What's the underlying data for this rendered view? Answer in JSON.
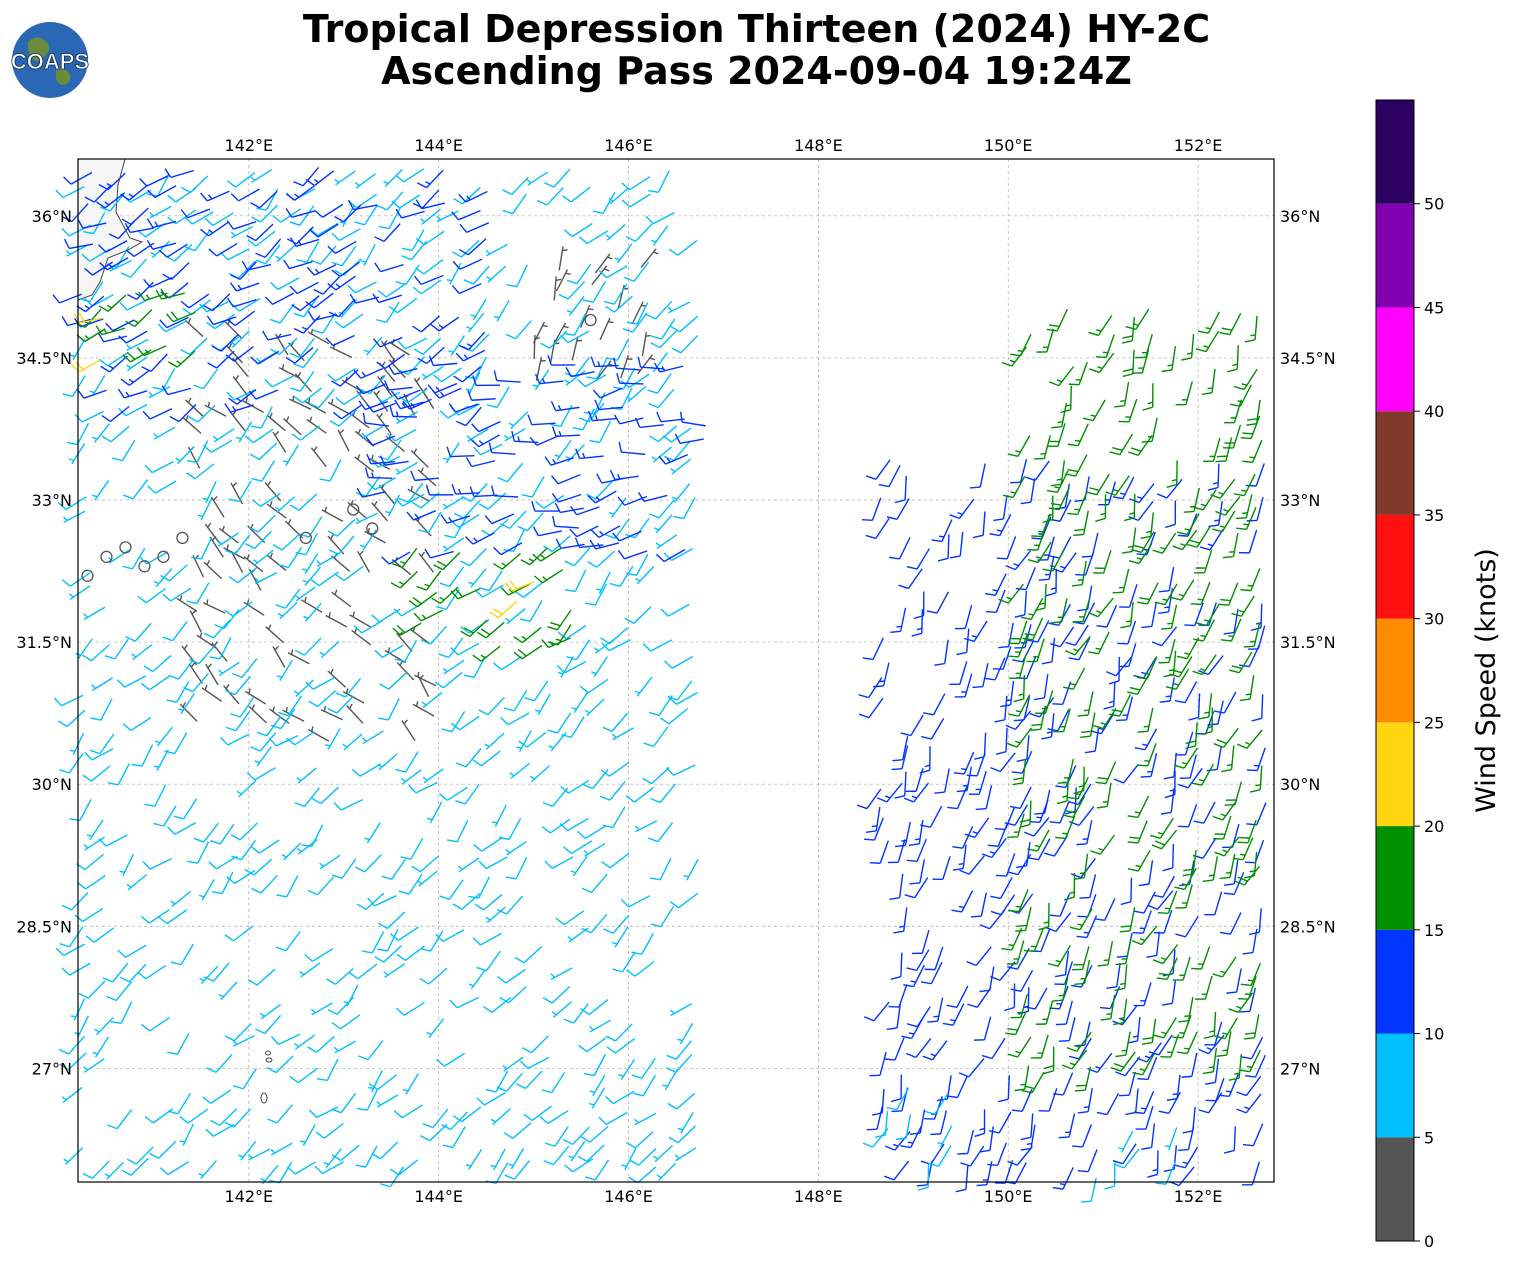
{
  "title": {
    "line1": "Tropical Depression Thirteen (2024) HY-2C",
    "line2": "Ascending Pass 2024-09-04 19:24Z"
  },
  "logo": {
    "text": "COAPS",
    "icon": "globe-logo-icon"
  },
  "map": {
    "lon_range": [
      140.2,
      152.8
    ],
    "lat_range": [
      25.8,
      36.6
    ],
    "lon_ticks": [
      {
        "value": 142,
        "label": "142°E"
      },
      {
        "value": 144,
        "label": "144°E"
      },
      {
        "value": 146,
        "label": "146°E"
      },
      {
        "value": 148,
        "label": "148°E"
      },
      {
        "value": 150,
        "label": "150°E"
      },
      {
        "value": 152,
        "label": "152°E"
      }
    ],
    "lat_ticks": [
      {
        "value": 36,
        "label": "36°N"
      },
      {
        "value": 34.5,
        "label": "34.5°N"
      },
      {
        "value": 33,
        "label": "33°N"
      },
      {
        "value": 31.5,
        "label": "31.5°N"
      },
      {
        "value": 30,
        "label": "30°N"
      },
      {
        "value": 28.5,
        "label": "28.5°N"
      },
      {
        "value": 27,
        "label": "27°N"
      }
    ],
    "gridlines": true
  },
  "colorbar": {
    "label": "Wind Speed (knots)",
    "ticks": [
      "0",
      "5",
      "10",
      "15",
      "20",
      "25",
      "30",
      "35",
      "40",
      "45",
      "50"
    ],
    "bins": [
      {
        "min": 0,
        "max": 5,
        "color": "#555555"
      },
      {
        "min": 5,
        "max": 10,
        "color": "#00bfff"
      },
      {
        "min": 10,
        "max": 15,
        "color": "#0035ff"
      },
      {
        "min": 15,
        "max": 20,
        "color": "#008f00"
      },
      {
        "min": 20,
        "max": 25,
        "color": "#ffd510"
      },
      {
        "min": 25,
        "max": 30,
        "color": "#ff8c00"
      },
      {
        "min": 30,
        "max": 35,
        "color": "#ff0f0f"
      },
      {
        "min": 35,
        "max": 40,
        "color": "#7f3a29"
      },
      {
        "min": 40,
        "max": 45,
        "color": "#ff00ff"
      },
      {
        "min": 45,
        "max": 50,
        "color": "#8000b0"
      },
      {
        "min": 50,
        "max": 55,
        "color": "#2c0060"
      }
    ]
  },
  "chart_data": {
    "type": "scatter",
    "description_kind": "wind-barbs",
    "swaths": [
      {
        "name_hidden": "west swath",
        "regions": [
          {
            "lon": [
              140.3,
              141.2
            ],
            "lat": [
              32.3,
              32.6
            ],
            "speed": 2,
            "dir": 0,
            "calm": true
          },
          {
            "lon": [
              141.5,
              144.0
            ],
            "lat": [
              30.5,
              34.8
            ],
            "speed": 4,
            "dir": 315
          },
          {
            "lon": [
              145.0,
              146.2
            ],
            "lat": [
              34.3,
              35.6
            ],
            "speed": 4,
            "dir": 20
          },
          {
            "lon": [
              140.3,
              146.8
            ],
            "lat": [
              26.0,
              36.5
            ],
            "speed": 8,
            "dir": 225
          },
          {
            "lon": [
              140.3,
              144.5
            ],
            "lat": [
              34.0,
              36.5
            ],
            "speed": 12,
            "dir": 240
          },
          {
            "lon": [
              143.5,
              147.0
            ],
            "lat": [
              32.5,
              34.5
            ],
            "speed": 12,
            "dir": 260
          },
          {
            "lon": [
              143.8,
              145.5
            ],
            "lat": [
              31.5,
              32.5
            ],
            "speed": 17,
            "dir": 230
          },
          {
            "lon": [
              140.5,
              141.4
            ],
            "lat": [
              34.4,
              35.2
            ],
            "speed": 17,
            "dir": 240
          },
          {
            "lon": [
              144.8,
              145.2
            ],
            "lat": [
              31.9,
              32.2
            ],
            "speed": 22,
            "dir": 230
          },
          {
            "lon": [
              140.2,
              140.6
            ],
            "lat": [
              34.5,
              34.9
            ],
            "speed": 22,
            "dir": 240
          }
        ],
        "calm_points": [
          {
            "lon": 140.3,
            "lat": 32.2
          },
          {
            "lon": 140.5,
            "lat": 32.4
          },
          {
            "lon": 140.7,
            "lat": 32.5
          },
          {
            "lon": 140.9,
            "lat": 32.3
          },
          {
            "lon": 141.1,
            "lat": 32.4
          },
          {
            "lon": 141.3,
            "lat": 32.6
          },
          {
            "lon": 142.6,
            "lat": 32.6
          },
          {
            "lon": 143.1,
            "lat": 32.9
          },
          {
            "lon": 143.3,
            "lat": 32.7
          },
          {
            "lon": 145.6,
            "lat": 34.9
          }
        ]
      },
      {
        "name_hidden": "east swath",
        "regions": [
          {
            "lon": [
              148.7,
              152.8
            ],
            "lat": [
              25.8,
              33.5
            ],
            "speed": 12,
            "dir": 200
          },
          {
            "lon": [
              150.2,
              152.8
            ],
            "lat": [
              27.0,
              35.0
            ],
            "speed": 17,
            "dir": 200
          },
          {
            "lon": [
              148.7,
              149.4
            ],
            "lat": [
              25.8,
              26.8
            ],
            "speed": 8,
            "dir": 200
          },
          {
            "lon": [
              150.9,
              151.8
            ],
            "lat": [
              25.8,
              26.4
            ],
            "speed": 8,
            "dir": 200
          }
        ]
      }
    ]
  }
}
